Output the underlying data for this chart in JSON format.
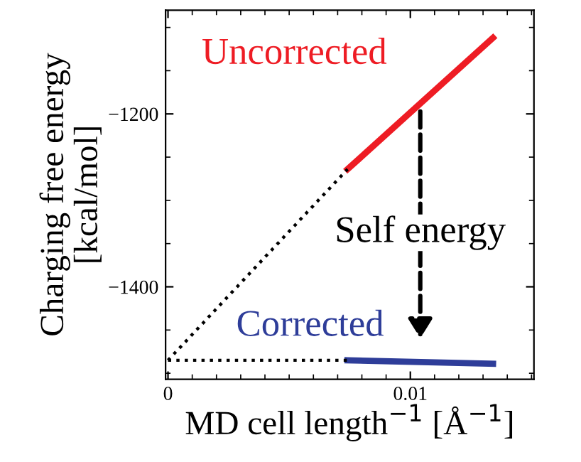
{
  "chart_data": {
    "type": "line",
    "xlabel": "MD cell length$^{−1}$ [Å$^{−1}$]",
    "ylabel": "Charging free energy\n[kcal/mol]",
    "series": [
      {
        "name": "Uncorrected",
        "color": "#ee1c24",
        "x": [
          0.00741,
          0.01341
        ],
        "values": [
          -1264,
          -1112
        ],
        "line_style": "solid"
      },
      {
        "name": "Corrected",
        "color": "#2e3d99",
        "x": [
          0.00741,
          0.01341
        ],
        "values": [
          -1485,
          -1489
        ],
        "line_style": "solid"
      },
      {
        "color": "#000000",
        "x": [
          0,
          0.00741
        ],
        "values": [
          -1485,
          -1264
        ],
        "line_style": "dotted"
      },
      {
        "color": "#000000",
        "x": [
          0,
          0.00741
        ],
        "values": [
          -1485,
          -1485
        ],
        "line_style": "dotted"
      }
    ],
    "annotations": [
      "Self energy"
    ],
    "xlim": [
      -0.0001,
      0.0151
    ],
    "ylim": [
      -1507,
      -1080
    ],
    "xticks": [
      0,
      0.01
    ],
    "yticks": [
      {
        "value": -1200,
        "label": "−1200"
      },
      {
        "value": -1400,
        "label": "−1400"
      }
    ],
    "grid": false,
    "marker": "none"
  }
}
